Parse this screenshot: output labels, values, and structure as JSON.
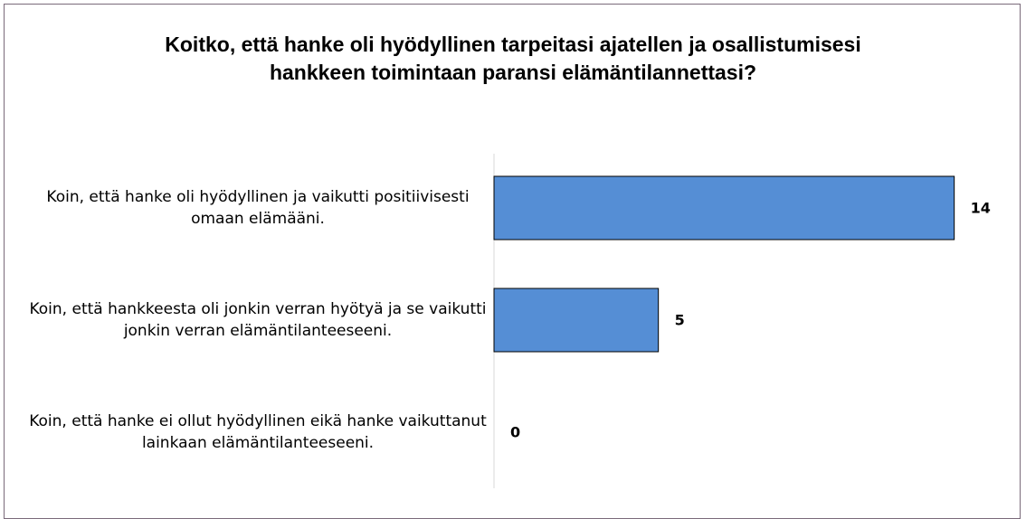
{
  "chart_data": {
    "type": "bar",
    "orientation": "horizontal",
    "title": "Koitko, että hanke oli hyödyllinen tarpeitasi ajatellen ja osallistumisesi hankkeen toimintaan paransi elämäntilannettasi?",
    "categories": [
      "Koin, että hanke oli hyödyllinen ja vaikutti positiivisesti omaan elämääni.",
      "Koin, että hankkeesta oli jonkin verran hyötyä ja se vaikutti jonkin verran elämäntilanteeseeni.",
      "Koin, että hanke ei ollut hyödyllinen eikä hanke vaikuttanut lainkaan elämäntilanteeseeni."
    ],
    "values": [
      14,
      5,
      0
    ],
    "color": "#558ed5",
    "xlim": [
      0,
      15
    ]
  }
}
